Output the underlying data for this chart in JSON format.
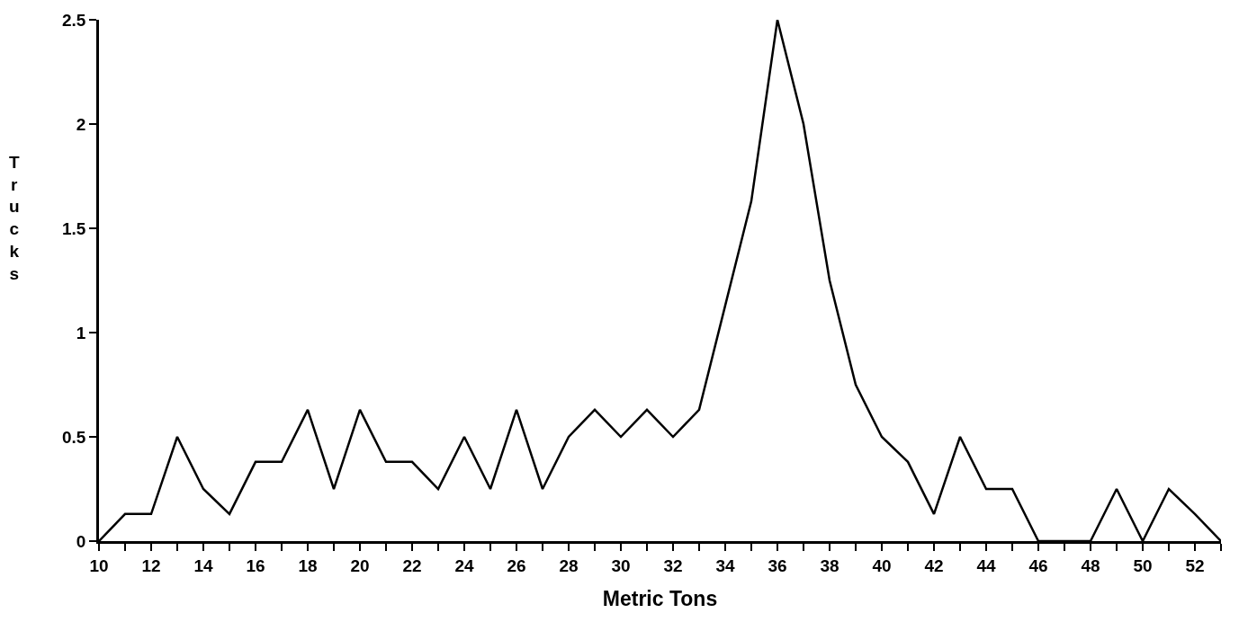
{
  "chart_data": {
    "type": "line",
    "xlabel": "Metric Tons",
    "ylabel": "Trucks",
    "x": [
      10,
      11,
      12,
      13,
      14,
      15,
      16,
      17,
      18,
      19,
      20,
      21,
      22,
      23,
      24,
      25,
      26,
      27,
      28,
      29,
      30,
      31,
      32,
      33,
      34,
      35,
      36,
      37,
      38,
      39,
      40,
      41,
      42,
      43,
      44,
      45,
      46,
      47,
      48,
      49,
      50,
      51,
      52,
      53
    ],
    "series": [
      {
        "color": "#000000",
        "values": [
          0,
          0.13,
          0.13,
          0.5,
          0.25,
          0.13,
          0.38,
          0.38,
          0.63,
          0.25,
          0.63,
          0.38,
          0.38,
          0.25,
          0.5,
          0.25,
          0.63,
          0.25,
          0.5,
          0.63,
          0.5,
          0.63,
          0.5,
          0.63,
          1.13,
          1.63,
          2.5,
          2.0,
          1.25,
          0.75,
          0.5,
          0.38,
          0.13,
          0.5,
          0.25,
          0.25,
          0,
          0,
          0,
          0.25,
          0,
          0.25,
          0.13,
          0
        ]
      }
    ],
    "xlim": [
      10,
      53
    ],
    "xticks": [
      10,
      {
        "value": 11,
        "label": null
      },
      12,
      {
        "value": 13,
        "label": null
      },
      14,
      {
        "value": 15,
        "label": null
      },
      16,
      {
        "value": 17,
        "label": null
      },
      18,
      {
        "value": 19,
        "label": null
      },
      20,
      {
        "value": 21,
        "label": null
      },
      22,
      {
        "value": 23,
        "label": null
      },
      24,
      {
        "value": 25,
        "label": null
      },
      26,
      {
        "value": 27,
        "label": null
      },
      28,
      {
        "value": 29,
        "label": null
      },
      30,
      {
        "value": 31,
        "label": null
      },
      32,
      {
        "value": 33,
        "label": null
      },
      34,
      {
        "value": 35,
        "label": null
      },
      36,
      {
        "value": 37,
        "label": null
      },
      38,
      {
        "value": 39,
        "label": null
      },
      40,
      {
        "value": 41,
        "label": null
      },
      42,
      {
        "value": 43,
        "label": null
      },
      44,
      {
        "value": 45,
        "label": null
      },
      46,
      {
        "value": 47,
        "label": null
      },
      48,
      {
        "value": 49,
        "label": null
      },
      50,
      {
        "value": 51,
        "label": null
      },
      52,
      {
        "value": 53,
        "label": null
      }
    ],
    "ylim": [
      0,
      2.5
    ],
    "yticks": [
      0,
      0.5,
      1,
      1.5,
      2,
      2.5
    ],
    "legend": false,
    "marker": "none",
    "line_style": "solid"
  }
}
